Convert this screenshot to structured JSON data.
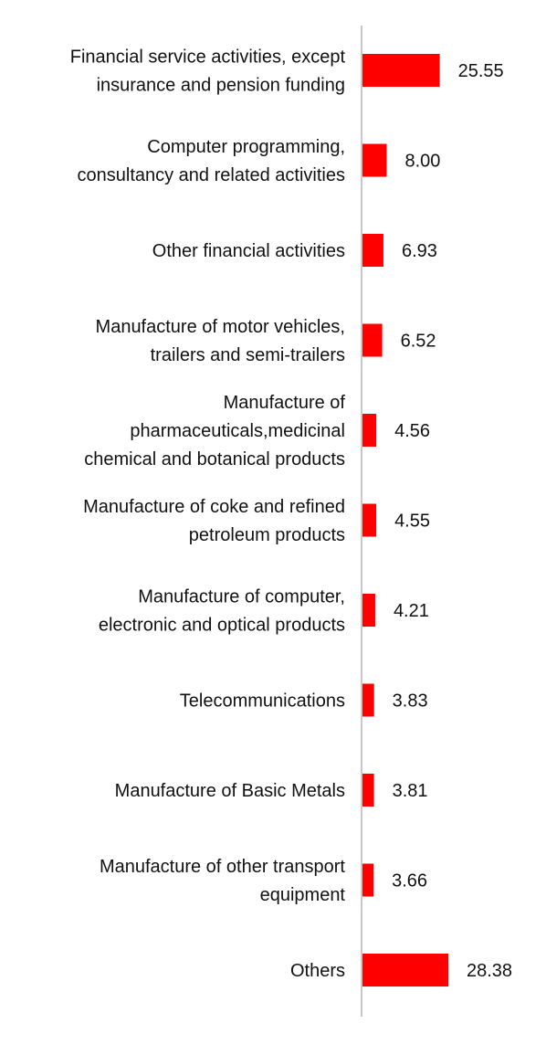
{
  "chart_data": {
    "type": "bar",
    "orientation": "horizontal",
    "categories": [
      [
        "Financial service activities, except",
        "insurance and pension funding"
      ],
      [
        "Computer programming,",
        "consultancy and related activities"
      ],
      [
        "Other financial activities"
      ],
      [
        "Manufacture of motor vehicles,",
        "trailers and semi-trailers"
      ],
      [
        "Manufacture of",
        "pharmaceuticals,medicinal",
        "chemical and botanical products"
      ],
      [
        "Manufacture of coke and refined",
        "petroleum products"
      ],
      [
        "Manufacture of computer,",
        "electronic and optical products"
      ],
      [
        "Telecommunications"
      ],
      [
        "Manufacture of Basic Metals"
      ],
      [
        "Manufacture of other transport",
        "equipment"
      ],
      [
        "Others"
      ]
    ],
    "values": [
      25.55,
      8.0,
      6.93,
      6.52,
      4.56,
      4.55,
      4.21,
      3.83,
      3.81,
      3.66,
      28.38
    ],
    "value_labels": [
      "25.55",
      "8.00",
      "6.93",
      "6.52",
      "4.56",
      "4.55",
      "4.21",
      "3.83",
      "3.81",
      "3.66",
      "28.38"
    ],
    "bar_color": "#ff0000",
    "axis_color": "#c8c8c8",
    "xlim": [
      0,
      30
    ],
    "title": "",
    "xlabel": "",
    "ylabel": "",
    "grid": false,
    "legend": "none"
  }
}
